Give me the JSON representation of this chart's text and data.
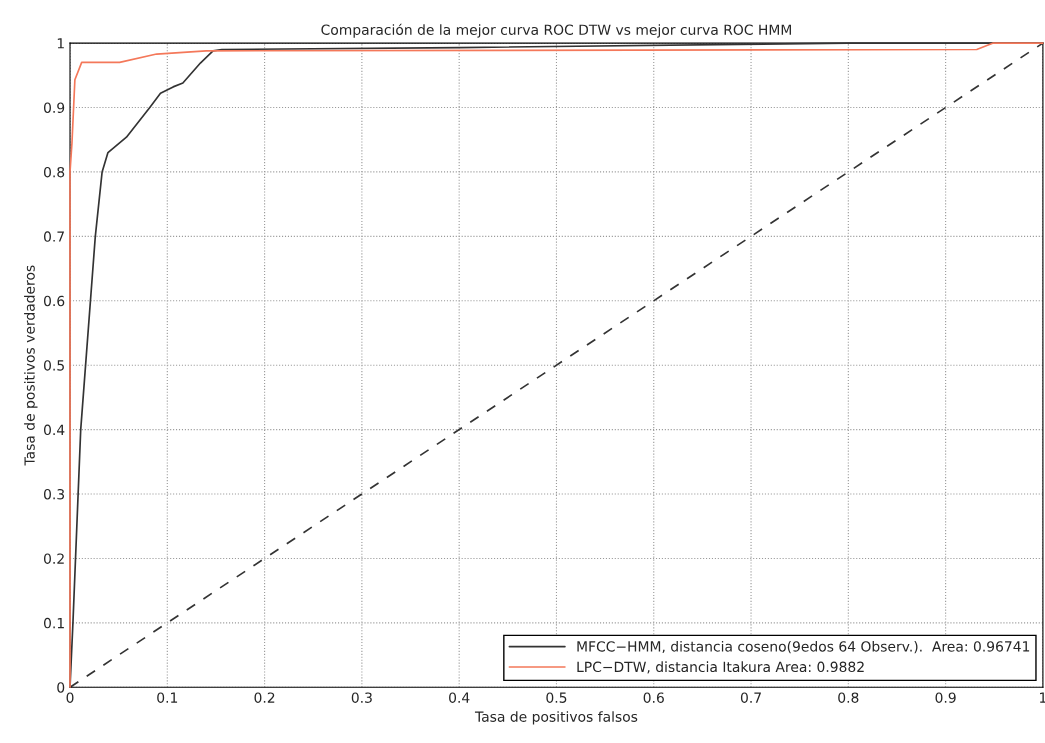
{
  "chart_data": {
    "type": "line",
    "title": "Comparación de la mejor curva ROC DTW vs mejor curva ROC HMM",
    "xlabel": "Tasa de positivos falsos",
    "ylabel": "Tasa de positivos verdaderos",
    "series": [
      {
        "name": "MFCC−HMM, distancia coseno(9edos 64 Observ.).  Area: 0.96741",
        "color": "#333333",
        "x": [
          0,
          0.003,
          0.011,
          0.026,
          0.033,
          0.039,
          0.058,
          0.082,
          0.093,
          0.106,
          0.116,
          0.134,
          0.147,
          0.156,
          0.4,
          0.8,
          1
        ],
        "values": [
          0,
          0.1,
          0.4,
          0.7,
          0.8,
          0.83,
          0.854,
          0.9,
          0.922,
          0.932,
          0.938,
          0.969,
          0.988,
          0.99,
          0.993,
          1,
          1
        ]
      },
      {
        "name": "LPC−DTW, distancia Itakura Area: 0.9882",
        "color": "#f4785a",
        "x": [
          0,
          0,
          0.002,
          0.005,
          0.012,
          0.051,
          0.089,
          0.14,
          0.932,
          0.949,
          1
        ],
        "values": [
          0,
          0.8,
          0.845,
          0.943,
          0.97,
          0.97,
          0.983,
          0.988,
          0.99,
          1,
          1
        ]
      },
      {
        "color": "#333333",
        "line_style": "dashed",
        "x": [
          0,
          1
        ],
        "values": [
          0,
          1
        ]
      }
    ],
    "xlim": [
      0,
      1
    ],
    "ylim": [
      0,
      1
    ],
    "xticks": [
      0,
      0.1,
      0.2,
      0.3,
      0.4,
      0.5,
      0.6,
      0.7,
      0.8,
      0.9,
      1
    ],
    "yticks": [
      0,
      0.1,
      0.2,
      0.3,
      0.4,
      0.5,
      0.6,
      0.7,
      0.8,
      0.9,
      1
    ],
    "grid": true,
    "legend": "bottom right"
  }
}
